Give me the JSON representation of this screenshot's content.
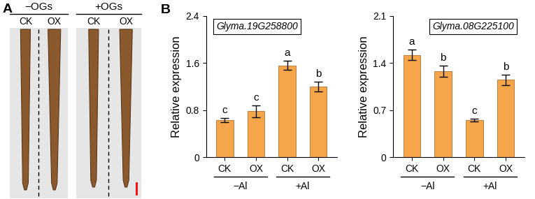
{
  "panel_a": {
    "label": "A",
    "groups": [
      {
        "label": "−OGs",
        "samples": [
          "CK",
          "OX"
        ]
      },
      {
        "label": "+OGs",
        "samples": [
          "CK",
          "OX"
        ]
      }
    ]
  },
  "panel_b_label": "B",
  "chart_data": [
    {
      "type": "bar",
      "title": "Glyma.19G258800",
      "y_label": "Relative expression",
      "categories": [
        "CK",
        "OX",
        "CK",
        "OX"
      ],
      "group_labels": [
        "−Al",
        "+Al"
      ],
      "values": [
        0.63,
        0.78,
        1.56,
        1.2
      ],
      "errors": [
        0.04,
        0.1,
        0.08,
        0.08
      ],
      "annotations": [
        "c",
        "c",
        "a",
        "b"
      ],
      "color": "#f5a54a",
      "ylim": [
        0,
        2.4
      ],
      "yticks": [
        0,
        0.8,
        1.6,
        2.4
      ]
    },
    {
      "type": "bar",
      "title": "Glyma.08G225100",
      "y_label": "Relative expression",
      "categories": [
        "CK",
        "OX",
        "CK",
        "OX"
      ],
      "group_labels": [
        "−Al",
        "+Al"
      ],
      "values": [
        1.52,
        1.28,
        0.55,
        1.15
      ],
      "errors": [
        0.08,
        0.08,
        0.02,
        0.08
      ],
      "annotations": [
        "a",
        "b",
        "c",
        "b"
      ],
      "color": "#f5a54a",
      "ylim": [
        0,
        2.1
      ],
      "yticks": [
        0,
        0.7,
        1.4,
        2.1
      ]
    }
  ]
}
